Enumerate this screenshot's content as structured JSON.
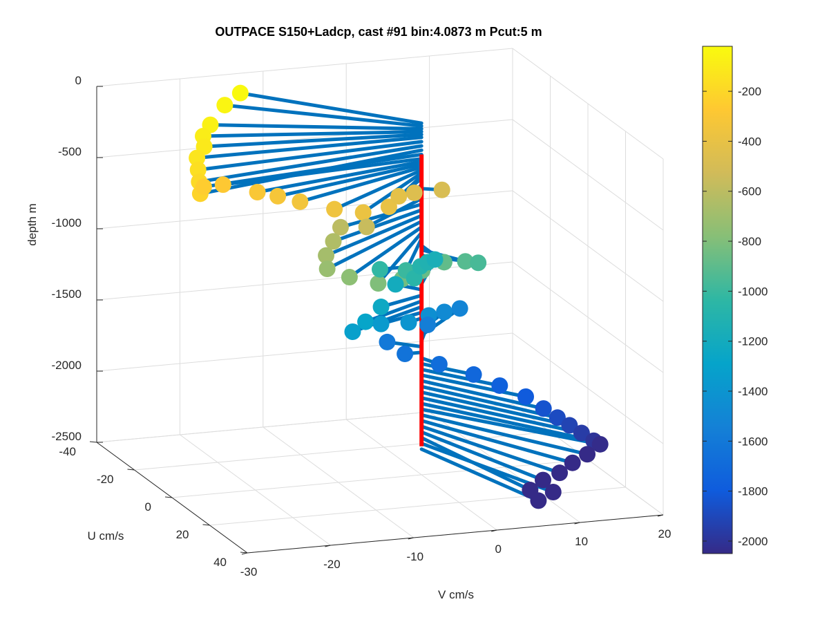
{
  "chart_data": {
    "type": "scatter3d",
    "title": "OUTPACE S150+Ladcp, cast #91 bin:4.0873 m  Pcut:5 m",
    "xlabel": "V cm/s",
    "ylabel": "U cm/s",
    "zlabel": "depth m",
    "xlim": [
      -30,
      20
    ],
    "ylim": [
      -40,
      40
    ],
    "zlim": [
      -2500,
      0
    ],
    "xticks": [
      "-30",
      "-20",
      "-10",
      "0",
      "10",
      "20"
    ],
    "yticks": [
      "-40",
      "-20",
      "0",
      "20",
      "40"
    ],
    "zticks": [
      "0",
      "-500",
      "-1000",
      "-1500",
      "-2000",
      "-2500"
    ],
    "grid": true,
    "colorbar": {
      "range": [
        -2050,
        -20
      ],
      "ticks": [
        "-200",
        "-400",
        "-600",
        "-800",
        "-1000",
        "-1200",
        "-1400",
        "-1600",
        "-1800",
        "-2000"
      ],
      "colormap": "parula"
    },
    "stick_color": "#0072bd",
    "reference_line": {
      "color": "#ff0000",
      "v": 0,
      "u": 0,
      "depth_range": [
        -2300,
        -250
      ]
    },
    "points": [
      {
        "v": -15,
        "u": -30,
        "depth": -30
      },
      {
        "v": -18,
        "u": -25,
        "depth": -50
      },
      {
        "v": -22,
        "u": -15,
        "depth": -70
      },
      {
        "v": -24,
        "u": -10,
        "depth": -90
      },
      {
        "v": -25,
        "u": -5,
        "depth": -110
      },
      {
        "v": -27,
        "u": 0,
        "depth": -130
      },
      {
        "v": -28,
        "u": 5,
        "depth": -160
      },
      {
        "v": -29,
        "u": 10,
        "depth": -190
      },
      {
        "v": -30,
        "u": 15,
        "depth": -220
      },
      {
        "v": -28,
        "u": 8,
        "depth": -250
      },
      {
        "v": -25,
        "u": 5,
        "depth": -280
      },
      {
        "v": -22,
        "u": 10,
        "depth": -300
      },
      {
        "v": -20,
        "u": 12,
        "depth": -320
      },
      {
        "v": -18,
        "u": 15,
        "depth": -340
      },
      {
        "v": -15,
        "u": 20,
        "depth": -360
      },
      {
        "v": -12,
        "u": 22,
        "depth": -380
      },
      {
        "v": -8,
        "u": 18,
        "depth": -400
      },
      {
        "v": -5,
        "u": 10,
        "depth": -420
      },
      {
        "v": -2,
        "u": 5,
        "depth": -460
      },
      {
        "v": 2,
        "u": 2,
        "depth": -490
      },
      {
        "v": -10,
        "u": 15,
        "depth": -560
      },
      {
        "v": -12,
        "u": 10,
        "depth": -600
      },
      {
        "v": -14,
        "u": 15,
        "depth": -640
      },
      {
        "v": -16,
        "u": 20,
        "depth": -680
      },
      {
        "v": -17,
        "u": 25,
        "depth": -720
      },
      {
        "v": -15,
        "u": 28,
        "depth": -760
      },
      {
        "v": -12,
        "u": 30,
        "depth": -800
      },
      {
        "v": -8,
        "u": 25,
        "depth": -840
      },
      {
        "v": -4,
        "u": 18,
        "depth": -870
      },
      {
        "v": 0,
        "u": 12,
        "depth": -890
      },
      {
        "v": 3,
        "u": 10,
        "depth": -920
      },
      {
        "v": 5,
        "u": 8,
        "depth": -960
      },
      {
        "v": -3,
        "u": 5,
        "depth": -1000
      },
      {
        "v": -5,
        "u": 0,
        "depth": -1030
      },
      {
        "v": -2,
        "u": 5,
        "depth": -1060
      },
      {
        "v": 1,
        "u": -5,
        "depth": -1090
      },
      {
        "v": 3,
        "u": -10,
        "depth": -1120
      },
      {
        "v": 5,
        "u": -15,
        "depth": -1160
      },
      {
        "v": -2,
        "u": -5,
        "depth": -1200
      },
      {
        "v": -6,
        "u": 5,
        "depth": -1240
      },
      {
        "v": -9,
        "u": 10,
        "depth": -1280
      },
      {
        "v": -11,
        "u": 12,
        "depth": -1320
      },
      {
        "v": -6,
        "u": 5,
        "depth": -1360
      },
      {
        "v": -2,
        "u": 2,
        "depth": -1400
      },
      {
        "v": 2,
        "u": -5,
        "depth": -1440
      },
      {
        "v": 5,
        "u": -10,
        "depth": -1480
      },
      {
        "v": 8,
        "u": -15,
        "depth": -1520
      },
      {
        "v": 3,
        "u": -10,
        "depth": -1560
      },
      {
        "v": -3,
        "u": -5,
        "depth": -1600
      },
      {
        "v": -2,
        "u": 0,
        "depth": -1640
      },
      {
        "v": 1,
        "u": 5,
        "depth": -1680
      },
      {
        "v": 4,
        "u": 10,
        "depth": -1720
      },
      {
        "v": 6,
        "u": 15,
        "depth": -1760
      },
      {
        "v": 8,
        "u": 20,
        "depth": -1800
      },
      {
        "v": 9,
        "u": 25,
        "depth": -1840
      },
      {
        "v": 10,
        "u": 28,
        "depth": -1880
      },
      {
        "v": 11,
        "u": 30,
        "depth": -1920
      },
      {
        "v": 12,
        "u": 32,
        "depth": -1960
      },
      {
        "v": 13,
        "u": 34,
        "depth": -2000
      },
      {
        "v": 14,
        "u": 33,
        "depth": -2040
      },
      {
        "v": 12,
        "u": 35,
        "depth": -2080
      },
      {
        "v": 10,
        "u": 36,
        "depth": -2120
      },
      {
        "v": 8,
        "u": 38,
        "depth": -2160
      },
      {
        "v": 6,
        "u": 38,
        "depth": -2200
      },
      {
        "v": 4,
        "u": 40,
        "depth": -2240
      },
      {
        "v": 7,
        "u": 39,
        "depth": -2280
      },
      {
        "v": 5,
        "u": 40,
        "depth": -2320
      }
    ]
  }
}
